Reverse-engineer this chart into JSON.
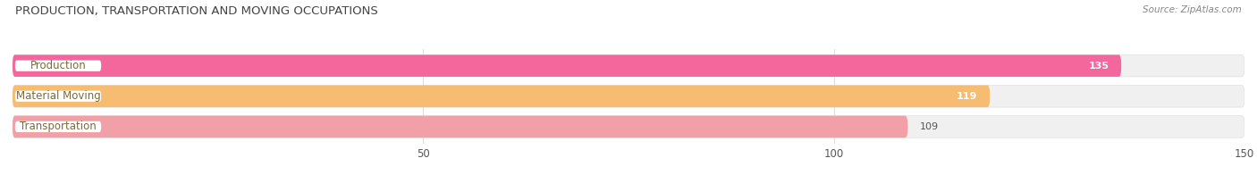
{
  "title": "PRODUCTION, TRANSPORTATION AND MOVING OCCUPATIONS",
  "source": "Source: ZipAtlas.com",
  "categories": [
    "Production",
    "Material Moving",
    "Transportation"
  ],
  "values": [
    135,
    119,
    109
  ],
  "bar_colors": [
    "#f4679d",
    "#f5bc72",
    "#f2a0a8"
  ],
  "bar_bg_colors": [
    "#f0f0f0",
    "#f0f0f0",
    "#f0f0f0"
  ],
  "value_colors": [
    "white",
    "white",
    "#555555"
  ],
  "value_inside": [
    true,
    true,
    false
  ],
  "xlim": [
    0,
    150
  ],
  "xticks": [
    50,
    100,
    150
  ],
  "figsize": [
    14.06,
    1.96
  ],
  "dpi": 100,
  "title_fontsize": 9.5,
  "label_fontsize": 8.5,
  "value_fontsize": 8.0,
  "source_fontsize": 7.5,
  "bar_height": 0.72,
  "label_text_color": "#7a6a3a",
  "bg_color": "#ffffff"
}
